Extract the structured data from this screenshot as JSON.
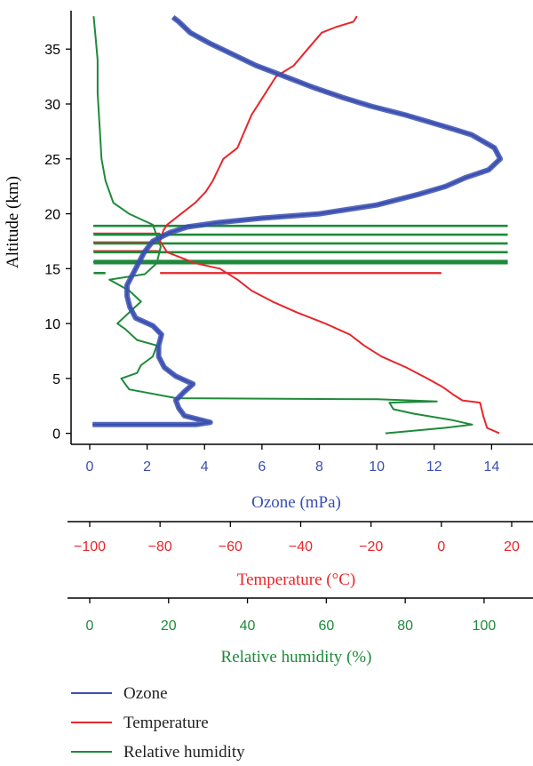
{
  "chart_data": {
    "type": "line",
    "yaxis": {
      "label": "Altitude (km)",
      "range": [
        -1,
        38.5
      ],
      "ticks": [
        0,
        5,
        10,
        15,
        20,
        25,
        30,
        35
      ],
      "tick_labels": [
        "0",
        "5",
        "10",
        "15",
        "20",
        "25",
        "30",
        "35"
      ]
    },
    "xaxes": [
      {
        "id": "ozone",
        "label": "Ozone (mPa)",
        "color": "#3a4fb0",
        "range": [
          0,
          14.7
        ],
        "ticks": [
          0,
          2,
          4,
          6,
          8,
          10,
          12,
          14
        ],
        "tick_labels": [
          "0",
          "2",
          "4",
          "6",
          "8",
          "10",
          "12",
          "14"
        ]
      },
      {
        "id": "temperature",
        "label": "Temperature (°C)",
        "color": "#e8262b",
        "range": [
          -100,
          20
        ],
        "ticks": [
          -100,
          -80,
          -60,
          -40,
          -20,
          0,
          20
        ],
        "tick_labels": [
          "−100",
          "−80",
          "−60",
          "−40",
          "−20",
          "0",
          "20"
        ]
      },
      {
        "id": "humidity",
        "label": "Relative humidity (%)",
        "color": "#1e8a3a",
        "range": [
          0,
          107
        ],
        "ticks": [
          0,
          20,
          40,
          60,
          80,
          100
        ],
        "tick_labels": [
          "0",
          "20",
          "40",
          "60",
          "80",
          "100"
        ]
      }
    ],
    "series": [
      {
        "name": "Ozone",
        "axis": "ozone",
        "color": "#3a4fb0",
        "points": [
          [
            0.1,
            0.8
          ],
          [
            3.7,
            0.8
          ],
          [
            4.2,
            1.0
          ],
          [
            3.3,
            1.6
          ],
          [
            3.1,
            2.3
          ],
          [
            3.0,
            3.0
          ],
          [
            3.3,
            3.8
          ],
          [
            3.6,
            4.5
          ],
          [
            3.0,
            5.2
          ],
          [
            2.6,
            6.0
          ],
          [
            2.4,
            7.0
          ],
          [
            2.4,
            8.0
          ],
          [
            2.5,
            9.0
          ],
          [
            2.2,
            9.8
          ],
          [
            1.6,
            10.5
          ],
          [
            1.4,
            11.5
          ],
          [
            1.3,
            12.5
          ],
          [
            1.3,
            13.5
          ],
          [
            1.5,
            14.5
          ],
          [
            1.7,
            15.5
          ],
          [
            1.9,
            16.5
          ],
          [
            2.2,
            17.5
          ],
          [
            2.8,
            18.3
          ],
          [
            3.4,
            18.8
          ],
          [
            4.5,
            19.2
          ],
          [
            6.0,
            19.6
          ],
          [
            8.0,
            20.0
          ],
          [
            10.0,
            20.8
          ],
          [
            11.5,
            21.8
          ],
          [
            12.4,
            22.5
          ],
          [
            13.1,
            23.3
          ],
          [
            13.9,
            24.0
          ],
          [
            14.3,
            25.0
          ],
          [
            14.1,
            26.0
          ],
          [
            13.3,
            27.2
          ],
          [
            12.3,
            28.0
          ],
          [
            11.0,
            29.0
          ],
          [
            9.8,
            29.8
          ],
          [
            8.8,
            30.6
          ],
          [
            7.8,
            31.5
          ],
          [
            6.8,
            32.5
          ],
          [
            5.8,
            33.5
          ],
          [
            5.0,
            34.5
          ],
          [
            4.2,
            35.5
          ],
          [
            3.5,
            36.5
          ],
          [
            3.1,
            37.5
          ],
          [
            2.9,
            37.9
          ]
        ]
      },
      {
        "name": "Temperature",
        "axis": "temperature",
        "color": "#e8262b",
        "points": [
          [
            16.5,
            0.0
          ],
          [
            13.0,
            0.5
          ],
          [
            12.0,
            1.5
          ],
          [
            11.0,
            2.8
          ],
          [
            6.0,
            3.0
          ],
          [
            3.5,
            3.5
          ],
          [
            0.5,
            4.2
          ],
          [
            -4.0,
            5.0
          ],
          [
            -10.0,
            6.0
          ],
          [
            -17.0,
            7.0
          ],
          [
            -22.0,
            8.0
          ],
          [
            -26.0,
            9.0
          ],
          [
            -33.0,
            10.0
          ],
          [
            -41.0,
            11.0
          ],
          [
            -48.0,
            12.0
          ],
          [
            -54.0,
            13.0
          ],
          [
            -58.0,
            14.0
          ],
          [
            -63.0,
            15.0
          ],
          [
            -70.0,
            15.5
          ],
          [
            -78.0,
            16.5
          ],
          [
            -80.0,
            17.5
          ],
          [
            -79.0,
            18.5
          ],
          [
            -78.0,
            19.0
          ],
          [
            -74.0,
            20.0
          ],
          [
            -70.0,
            21.0
          ],
          [
            -67.0,
            22.0
          ],
          [
            -65.0,
            23.0
          ],
          [
            -62.0,
            25.0
          ],
          [
            -58.0,
            26.0
          ],
          [
            -56.0,
            27.5
          ],
          [
            -54.0,
            29.0
          ],
          [
            -50.0,
            31.0
          ],
          [
            -47.0,
            32.5
          ],
          [
            -42.0,
            33.5
          ],
          [
            -38.0,
            35.0
          ],
          [
            -34.0,
            36.5
          ],
          [
            -30.0,
            37.0
          ],
          [
            -25.0,
            37.5
          ],
          [
            -24.0,
            38.0
          ]
        ]
      },
      {
        "name": "Relative humidity",
        "axis": "humidity",
        "color": "#1e8a3a",
        "points": [
          [
            75.0,
            0.0
          ],
          [
            90.0,
            0.5
          ],
          [
            97.0,
            0.8
          ],
          [
            92.0,
            1.2
          ],
          [
            82.0,
            1.8
          ],
          [
            77.0,
            2.2
          ],
          [
            76.0,
            2.8
          ],
          [
            88.0,
            2.9
          ],
          [
            73.0,
            3.1
          ],
          [
            22.0,
            3.2
          ],
          [
            10.0,
            4.0
          ],
          [
            8.0,
            5.0
          ],
          [
            12.0,
            5.5
          ],
          [
            13.0,
            6.2
          ],
          [
            16.0,
            7.0
          ],
          [
            17.0,
            8.0
          ],
          [
            12.0,
            8.5
          ],
          [
            9.0,
            9.5
          ],
          [
            7.0,
            10.0
          ],
          [
            10.0,
            11.0
          ],
          [
            13.0,
            12.0
          ],
          [
            10.0,
            13.0
          ],
          [
            5.0,
            14.0
          ],
          [
            14.0,
            14.5
          ],
          [
            17.0,
            15.5
          ],
          [
            18.0,
            17.0
          ],
          [
            17.0,
            18.0
          ],
          [
            16.0,
            19.0
          ],
          [
            10.0,
            20.0
          ],
          [
            6.0,
            21.0
          ],
          [
            4.0,
            23.0
          ],
          [
            3.0,
            25.0
          ],
          [
            2.5,
            28.0
          ],
          [
            2.0,
            31.0
          ],
          [
            2.0,
            34.0
          ],
          [
            1.5,
            36.0
          ],
          [
            1.0,
            38.0
          ]
        ]
      }
    ],
    "temperature_hlines": [
      {
        "y": 18.9,
        "x1": -99.0,
        "x2": -80.0
      },
      {
        "y": 18.2,
        "x1": -99.0,
        "x2": -80.0
      },
      {
        "y": 17.4,
        "x1": -99.0,
        "x2": -80.0
      },
      {
        "y": 16.6,
        "x1": -99.0,
        "x2": -80.0
      },
      {
        "y": 15.6,
        "x1": -99.0,
        "x2": 0.0
      },
      {
        "y": 14.6,
        "x1": -80.0,
        "x2": 0.0
      }
    ],
    "humidity_hlines": [
      {
        "y": 18.9,
        "x1": 1.0,
        "x2": 106.0
      },
      {
        "y": 18.1,
        "x1": 1.0,
        "x2": 106.0
      },
      {
        "y": 17.3,
        "x1": 1.0,
        "x2": 106.0
      },
      {
        "y": 16.5,
        "x1": 1.0,
        "x2": 106.0
      },
      {
        "y": 15.7,
        "x1": 1.0,
        "x2": 106.0
      },
      {
        "y": 15.5,
        "x1": 1.0,
        "x2": 106.0
      },
      {
        "y": 14.6,
        "x1": 1.0,
        "x2": 4.0
      }
    ],
    "legend": {
      "placement": "bottom-left",
      "entries": [
        {
          "label": "Ozone",
          "color": "#3a4fb0"
        },
        {
          "label": "Temperature",
          "color": "#e8262b"
        },
        {
          "label": "Relative humidity",
          "color": "#1e8a3a"
        }
      ]
    }
  }
}
